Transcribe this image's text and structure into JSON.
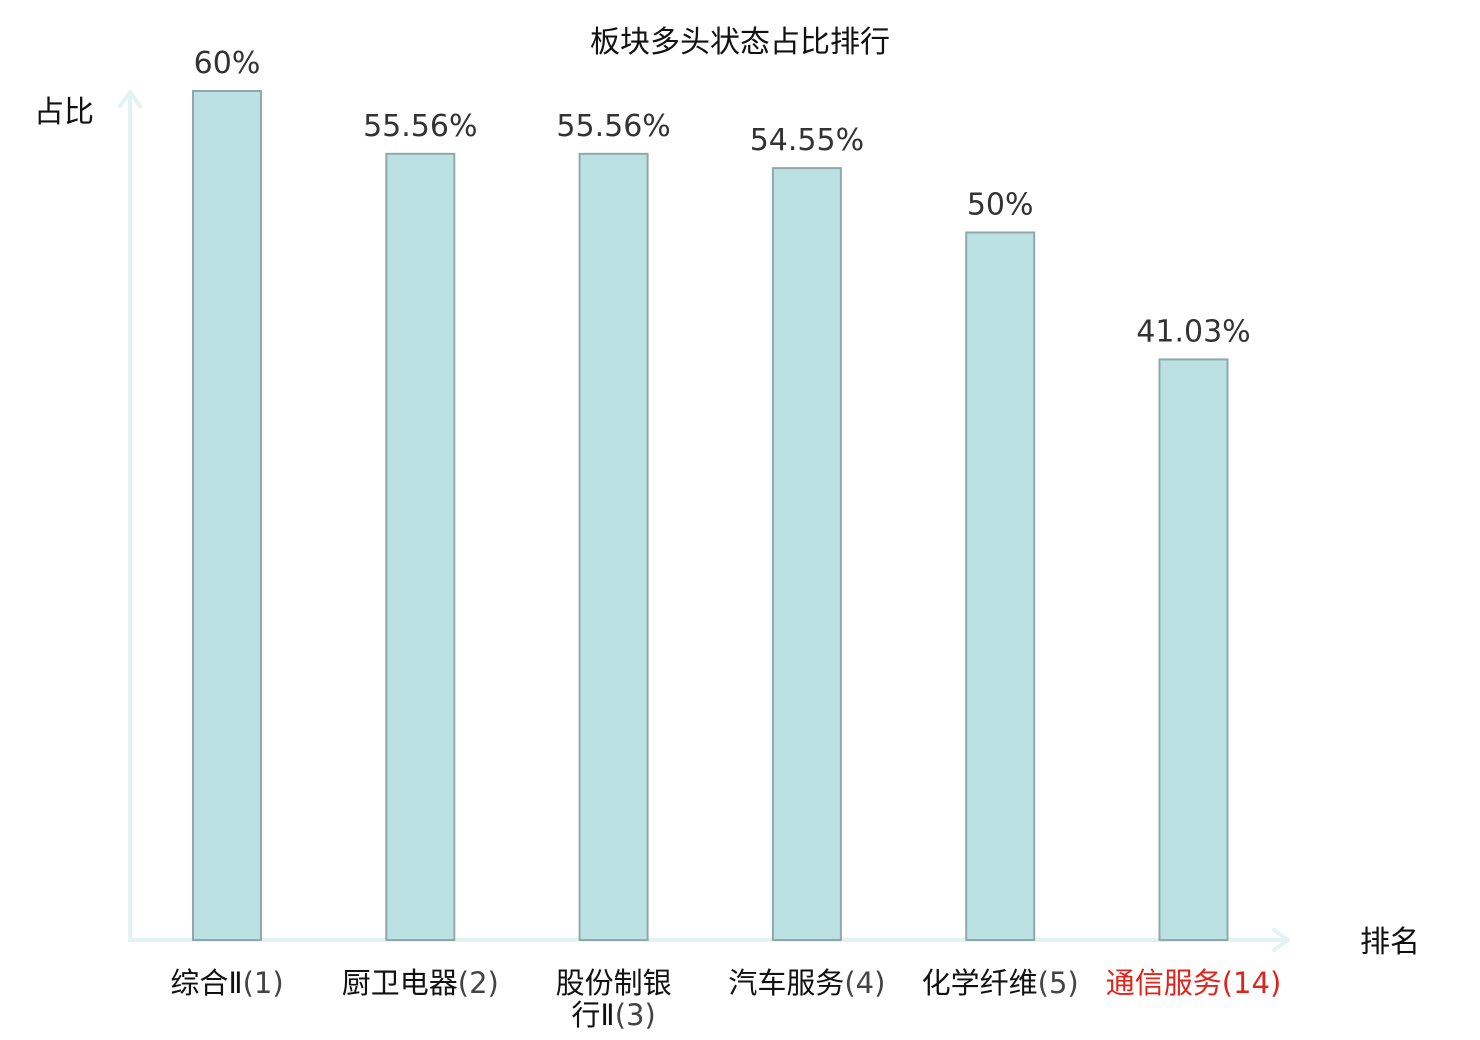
{
  "chart_data": {
    "type": "bar",
    "title": "板块多头状态占比排行",
    "ylabel": "占比",
    "xlabel": "排名",
    "ylim": [
      0,
      60
    ],
    "grid": false,
    "categories": [
      {
        "name": "综合Ⅱ",
        "rank": "(1)"
      },
      {
        "name": "厨卫电器",
        "rank": "(2)"
      },
      {
        "name": "股份制银行Ⅱ",
        "name_lines": [
          "股份制银",
          "行Ⅱ"
        ],
        "rank": "(3)"
      },
      {
        "name": "汽车服务",
        "rank": "(4)"
      },
      {
        "name": "化学纤维",
        "rank": "(5)"
      },
      {
        "name": "通信服务",
        "rank": "(14)",
        "highlight": true
      }
    ],
    "values": [
      60,
      55.56,
      55.56,
      54.55,
      50,
      41.03
    ],
    "value_labels": [
      "60%",
      "55.56%",
      "55.56%",
      "54.55%",
      "50%",
      "41.03%"
    ],
    "colors": {
      "bar_fill": "#bce1e3",
      "bar_stroke": "#8fa9ab",
      "axis": "#e3f3f1",
      "highlight": "#e0241b"
    }
  }
}
